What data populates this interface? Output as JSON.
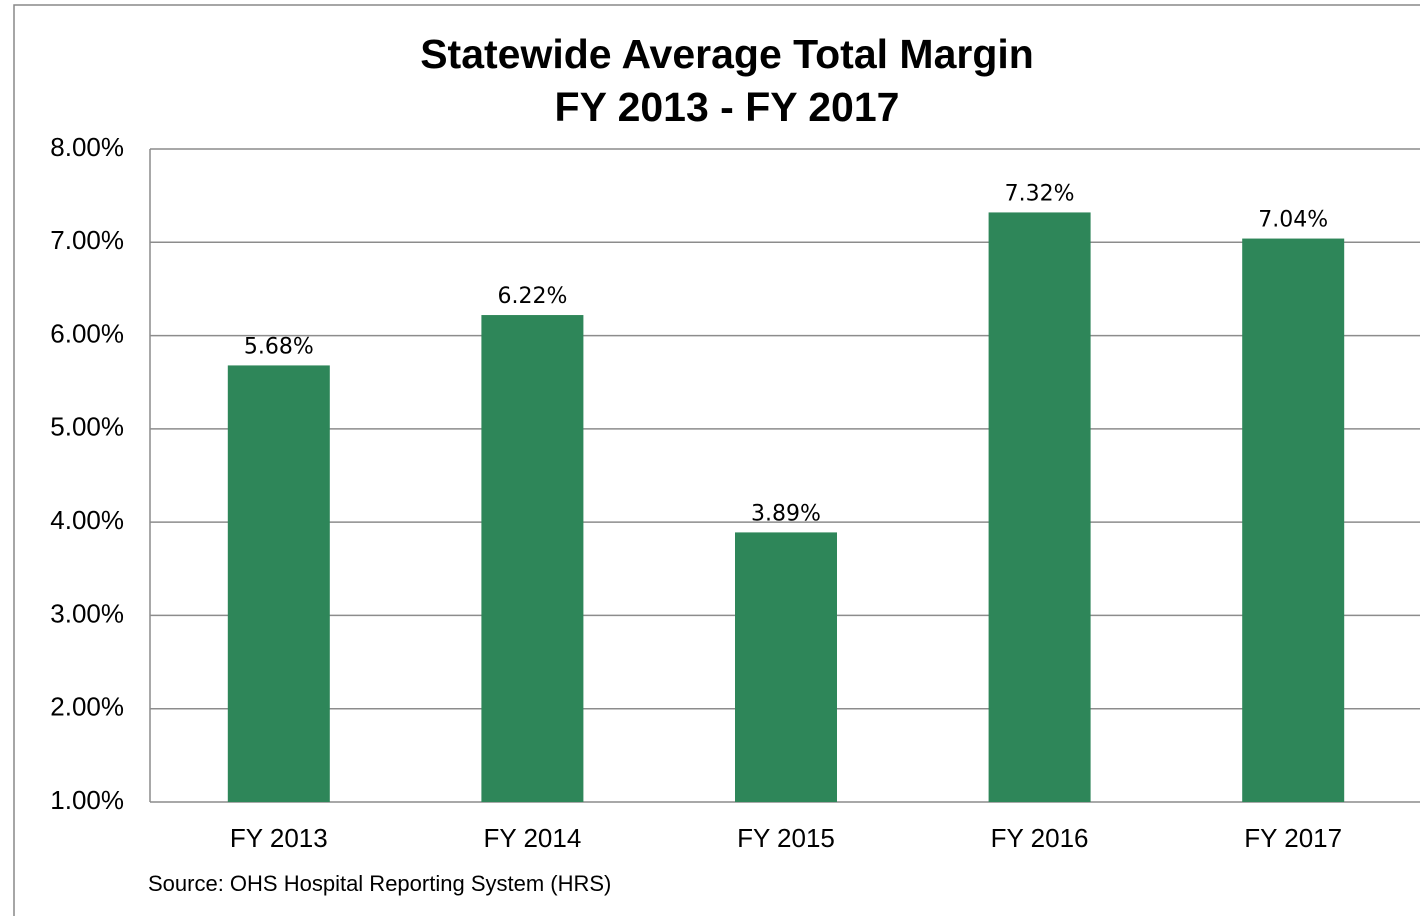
{
  "chart_data": {
    "type": "bar",
    "title": "Statewide Average Total Margin",
    "subtitle": "FY 2013 - FY 2017",
    "source": "Source: OHS Hospital Reporting System (HRS)",
    "categories": [
      "FY 2013",
      "FY 2014",
      "FY 2015",
      "FY 2016",
      "FY 2017"
    ],
    "values": [
      5.68,
      6.22,
      3.89,
      7.32,
      7.04
    ],
    "value_labels": [
      "5.68%",
      "6.22%",
      "3.89%",
      "7.32%",
      "7.04%"
    ],
    "color": "#2e8659",
    "ylim": [
      1,
      8
    ],
    "yticks": [
      {
        "value": 1,
        "label": "1.00%"
      },
      {
        "value": 2,
        "label": "2.00%"
      },
      {
        "value": 3,
        "label": "3.00%"
      },
      {
        "value": 4,
        "label": "4.00%"
      },
      {
        "value": 5,
        "label": "5.00%"
      },
      {
        "value": 6,
        "label": "6.00%"
      },
      {
        "value": 7,
        "label": "7.00%"
      },
      {
        "value": 8,
        "label": "8.00%"
      }
    ],
    "grid": true
  }
}
